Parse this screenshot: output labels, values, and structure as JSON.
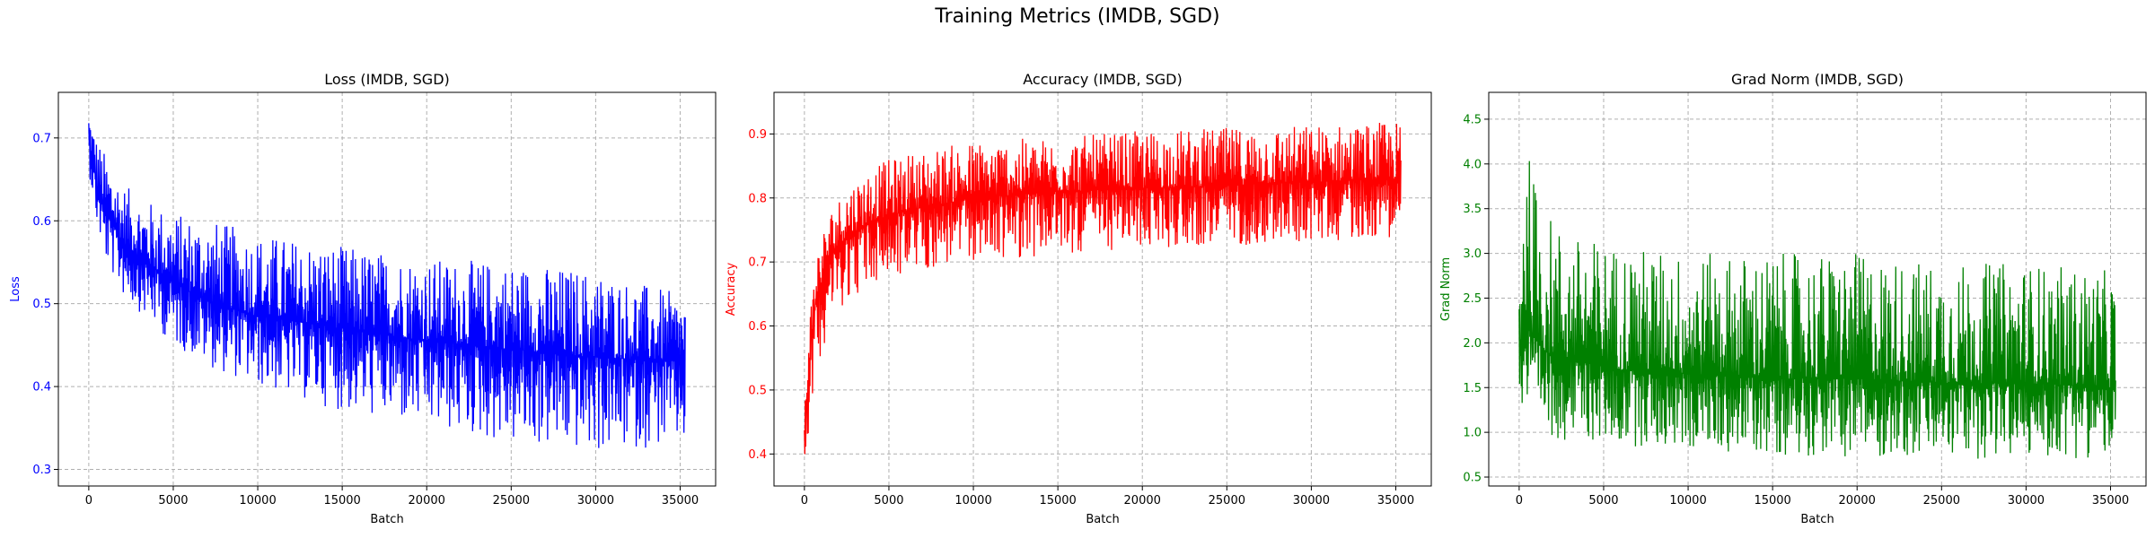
{
  "figure": {
    "suptitle": "Training Metrics (IMDB, SGD)"
  },
  "chart_data": [
    {
      "type": "line",
      "title": "Loss (IMDB, SGD)",
      "xlabel": "Batch",
      "ylabel": "Loss",
      "color": "#0000ff",
      "grid": true,
      "xlim": [
        -1800,
        37100
      ],
      "ylim": [
        0.28,
        0.755
      ],
      "xticks": [
        0,
        5000,
        10000,
        15000,
        20000,
        25000,
        30000,
        35000
      ],
      "xtick_labels": [
        "0",
        "5000",
        "10000",
        "15000",
        "20000",
        "25000",
        "30000",
        "35000"
      ],
      "yticks": [
        0.3,
        0.4,
        0.5,
        0.6,
        0.7
      ],
      "ytick_labels": [
        "0.3",
        "0.4",
        "0.5",
        "0.6",
        "0.7"
      ],
      "series": [
        {
          "x": [
            0,
            500,
            1000,
            2000,
            3000,
            5000,
            7500,
            10000,
            15000,
            20000,
            25000,
            30000,
            35300
          ],
          "upper": [
            0.735,
            0.7,
            0.68,
            0.645,
            0.63,
            0.61,
            0.6,
            0.585,
            0.57,
            0.555,
            0.55,
            0.54,
            0.51
          ],
          "mean": [
            0.7,
            0.64,
            0.61,
            0.575,
            0.555,
            0.525,
            0.5,
            0.485,
            0.47,
            0.455,
            0.445,
            0.435,
            0.43
          ],
          "lower": [
            0.66,
            0.59,
            0.55,
            0.51,
            0.49,
            0.45,
            0.42,
            0.4,
            0.37,
            0.35,
            0.33,
            0.32,
            0.33
          ]
        }
      ]
    },
    {
      "type": "line",
      "title": "Accuracy (IMDB, SGD)",
      "xlabel": "Batch",
      "ylabel": "Accuracy",
      "color": "#ff0000",
      "grid": true,
      "xlim": [
        -1800,
        37100
      ],
      "ylim": [
        0.35,
        0.965
      ],
      "xticks": [
        0,
        5000,
        10000,
        15000,
        20000,
        25000,
        30000,
        35000
      ],
      "xtick_labels": [
        "0",
        "5000",
        "10000",
        "15000",
        "20000",
        "25000",
        "30000",
        "35000"
      ],
      "yticks": [
        0.4,
        0.5,
        0.6,
        0.7,
        0.8,
        0.9
      ],
      "ytick_labels": [
        "0.4",
        "0.5",
        "0.6",
        "0.7",
        "0.8",
        "0.9"
      ],
      "series": [
        {
          "x": [
            0,
            300,
            700,
            1500,
            2500,
            4000,
            6000,
            8000,
            10000,
            15000,
            20000,
            25000,
            30000,
            35300
          ],
          "upper": [
            0.48,
            0.62,
            0.72,
            0.78,
            0.82,
            0.85,
            0.87,
            0.88,
            0.89,
            0.895,
            0.905,
            0.91,
            0.915,
            0.92
          ],
          "mean": [
            0.43,
            0.55,
            0.64,
            0.71,
            0.74,
            0.765,
            0.78,
            0.79,
            0.8,
            0.81,
            0.815,
            0.82,
            0.825,
            0.83
          ],
          "lower": [
            0.375,
            0.45,
            0.53,
            0.6,
            0.64,
            0.66,
            0.68,
            0.69,
            0.7,
            0.71,
            0.72,
            0.725,
            0.73,
            0.74
          ]
        }
      ]
    },
    {
      "type": "line",
      "title": "Grad Norm (IMDB, SGD)",
      "xlabel": "Batch",
      "ylabel": "Grad Norm",
      "color": "#008000",
      "grid": true,
      "xlim": [
        -1800,
        37100
      ],
      "ylim": [
        0.4,
        4.8
      ],
      "xticks": [
        0,
        5000,
        10000,
        15000,
        20000,
        25000,
        30000,
        35000
      ],
      "xtick_labels": [
        "0",
        "5000",
        "10000",
        "15000",
        "20000",
        "25000",
        "30000",
        "35000"
      ],
      "yticks": [
        0.5,
        1.0,
        1.5,
        2.0,
        2.5,
        3.0,
        3.5,
        4.0,
        4.5
      ],
      "ytick_labels": [
        "0.5",
        "1.0",
        "1.5",
        "2.0",
        "2.5",
        "3.0",
        "3.5",
        "4.0",
        "4.5"
      ],
      "series": [
        {
          "x": [
            0,
            300,
            700,
            1500,
            3000,
            6000,
            10000,
            15000,
            20000,
            25000,
            30000,
            35300
          ],
          "upper": [
            3.0,
            4.4,
            4.0,
            3.5,
            3.2,
            3.1,
            3.0,
            3.0,
            3.0,
            2.9,
            2.9,
            2.8
          ],
          "mean": [
            1.8,
            2.3,
            2.1,
            1.9,
            1.8,
            1.7,
            1.65,
            1.6,
            1.6,
            1.55,
            1.55,
            1.5
          ],
          "lower": [
            1.3,
            1.1,
            1.0,
            0.95,
            0.9,
            0.85,
            0.8,
            0.75,
            0.72,
            0.7,
            0.7,
            0.72
          ]
        }
      ]
    }
  ]
}
